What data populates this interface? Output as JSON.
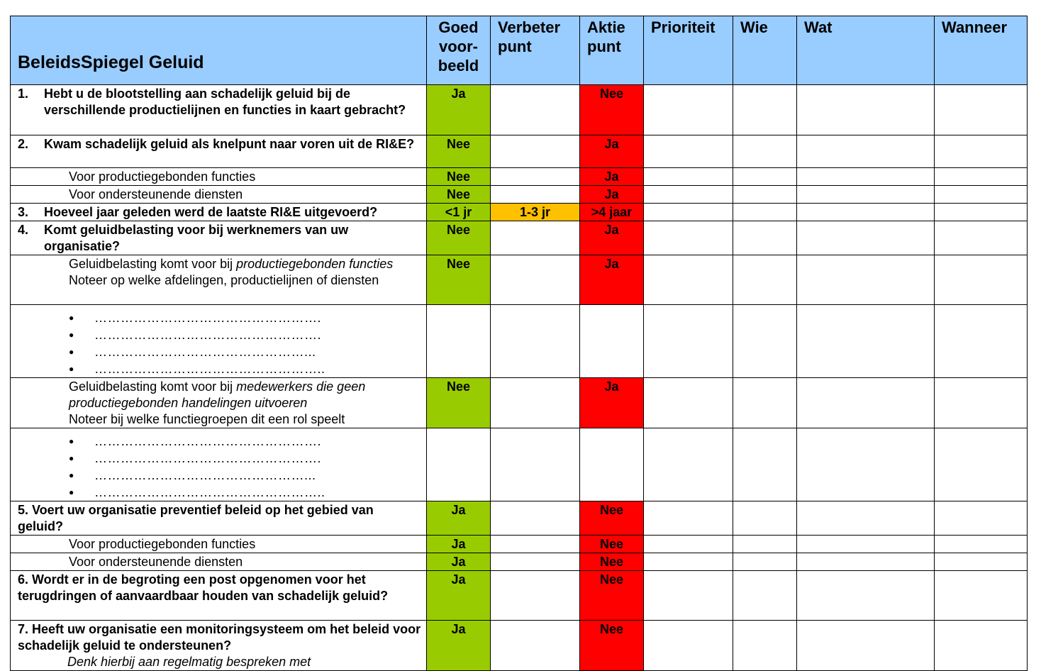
{
  "header": {
    "title": "BeleidsSpiegel Geluid",
    "col_good": "Goed voor-beeld",
    "col_improve": "Verbeter punt",
    "col_action": "Aktie punt",
    "col_priority": "Prioriteit",
    "col_who": "Wie",
    "col_what": "Wat",
    "col_when": "Wanneer"
  },
  "rows": {
    "q1": {
      "num": "1.",
      "text": "Hebt u de blootstelling aan schadelijk geluid bij de verschillende productielijnen en functies in kaart gebracht?",
      "good": "Ja",
      "action": "Nee"
    },
    "q2": {
      "num": "2.",
      "text": "Kwam schadelijk geluid als knelpunt naar voren uit de RI&E?",
      "good": "Nee",
      "action": "Ja"
    },
    "q2a": {
      "text": "Voor productiegebonden functies",
      "good": "Nee",
      "action": "Ja"
    },
    "q2b": {
      "text": "Voor ondersteunende diensten",
      "good": "Nee",
      "action": "Ja"
    },
    "q3": {
      "num": "3.",
      "text": "Hoeveel jaar geleden werd de laatste RI&E uitgevoerd?",
      "good": "<1 jr",
      "improve": "1-3 jr",
      "action": ">4 jaar"
    },
    "q4": {
      "num": "4.",
      "text": "Komt geluidbelasting voor bij werknemers van uw organisatie?",
      "good": "Nee",
      "action": "Ja"
    },
    "q4a": {
      "text_pre": "Geluidbelasting komt voor bij ",
      "text_it": "productiegebonden functies",
      "note": "Noteer op welke afdelingen, productielijnen of diensten",
      "good": "Nee",
      "action": "Ja"
    },
    "dots1": [
      "…………………………………………….",
      "…………………………………………….",
      "…………………………………………...",
      "…………………………………………….."
    ],
    "q4b": {
      "text_pre": "Geluidbelasting komt voor bij ",
      "text_it": "medewerkers die geen productiegebonden handelingen uitvoeren",
      "note": "Noteer bij welke functiegroepen dit een rol speelt",
      "good": "Nee",
      "action": "Ja"
    },
    "dots2": [
      "…………………………………………….",
      "…………………………………………….",
      "…………………………………………...",
      "…………………………………………….."
    ],
    "q5": {
      "text": "5. Voert uw organisatie preventief beleid op het gebied van geluid?",
      "good": "Ja",
      "action": "Nee"
    },
    "q5a": {
      "text": "Voor productiegebonden functies",
      "good": "Ja",
      "action": "Nee"
    },
    "q5b": {
      "text": "Voor ondersteunende diensten",
      "good": "Ja",
      "action": "Nee"
    },
    "q6": {
      "text": "6. Wordt er in de begroting een post opgenomen voor het terugdringen of aanvaardbaar houden van schadelijk geluid?",
      "good": "Ja",
      "action": "Nee"
    },
    "q7": {
      "text": "7. Heeft uw organisatie een monitoringsysteem om het beleid voor schadelijk geluid te ondersteunen?",
      "note": "Denk hierbij aan regelmatig bespreken met",
      "good": "Ja",
      "action": "Nee"
    }
  },
  "colors": {
    "header": "#99ccff",
    "good": "#99cc00",
    "action": "#ff0000",
    "improve": "#ffc000"
  }
}
